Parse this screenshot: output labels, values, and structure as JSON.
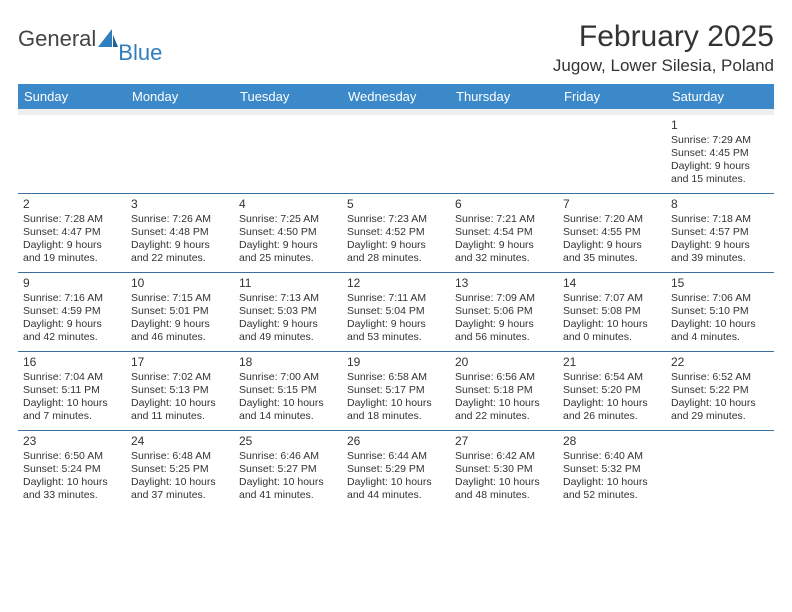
{
  "logo": {
    "word1": "General",
    "word2": "Blue"
  },
  "title": "February 2025",
  "location": "Jugow, Lower Silesia, Poland",
  "colors": {
    "header_bg": "#3b89c9",
    "header_text": "#ffffff",
    "rule": "#3b6fa0",
    "logo_blue": "#2f7fc0",
    "text": "#333333",
    "background": "#ffffff",
    "spacer": "#eeeeee"
  },
  "day_names": [
    "Sunday",
    "Monday",
    "Tuesday",
    "Wednesday",
    "Thursday",
    "Friday",
    "Saturday"
  ],
  "weeks": [
    [
      null,
      null,
      null,
      null,
      null,
      null,
      {
        "n": "1",
        "sr": "7:29 AM",
        "ss": "4:45 PM",
        "dl": "9 hours and 15 minutes."
      }
    ],
    [
      {
        "n": "2",
        "sr": "7:28 AM",
        "ss": "4:47 PM",
        "dl": "9 hours and 19 minutes."
      },
      {
        "n": "3",
        "sr": "7:26 AM",
        "ss": "4:48 PM",
        "dl": "9 hours and 22 minutes."
      },
      {
        "n": "4",
        "sr": "7:25 AM",
        "ss": "4:50 PM",
        "dl": "9 hours and 25 minutes."
      },
      {
        "n": "5",
        "sr": "7:23 AM",
        "ss": "4:52 PM",
        "dl": "9 hours and 28 minutes."
      },
      {
        "n": "6",
        "sr": "7:21 AM",
        "ss": "4:54 PM",
        "dl": "9 hours and 32 minutes."
      },
      {
        "n": "7",
        "sr": "7:20 AM",
        "ss": "4:55 PM",
        "dl": "9 hours and 35 minutes."
      },
      {
        "n": "8",
        "sr": "7:18 AM",
        "ss": "4:57 PM",
        "dl": "9 hours and 39 minutes."
      }
    ],
    [
      {
        "n": "9",
        "sr": "7:16 AM",
        "ss": "4:59 PM",
        "dl": "9 hours and 42 minutes."
      },
      {
        "n": "10",
        "sr": "7:15 AM",
        "ss": "5:01 PM",
        "dl": "9 hours and 46 minutes."
      },
      {
        "n": "11",
        "sr": "7:13 AM",
        "ss": "5:03 PM",
        "dl": "9 hours and 49 minutes."
      },
      {
        "n": "12",
        "sr": "7:11 AM",
        "ss": "5:04 PM",
        "dl": "9 hours and 53 minutes."
      },
      {
        "n": "13",
        "sr": "7:09 AM",
        "ss": "5:06 PM",
        "dl": "9 hours and 56 minutes."
      },
      {
        "n": "14",
        "sr": "7:07 AM",
        "ss": "5:08 PM",
        "dl": "10 hours and 0 minutes."
      },
      {
        "n": "15",
        "sr": "7:06 AM",
        "ss": "5:10 PM",
        "dl": "10 hours and 4 minutes."
      }
    ],
    [
      {
        "n": "16",
        "sr": "7:04 AM",
        "ss": "5:11 PM",
        "dl": "10 hours and 7 minutes."
      },
      {
        "n": "17",
        "sr": "7:02 AM",
        "ss": "5:13 PM",
        "dl": "10 hours and 11 minutes."
      },
      {
        "n": "18",
        "sr": "7:00 AM",
        "ss": "5:15 PM",
        "dl": "10 hours and 14 minutes."
      },
      {
        "n": "19",
        "sr": "6:58 AM",
        "ss": "5:17 PM",
        "dl": "10 hours and 18 minutes."
      },
      {
        "n": "20",
        "sr": "6:56 AM",
        "ss": "5:18 PM",
        "dl": "10 hours and 22 minutes."
      },
      {
        "n": "21",
        "sr": "6:54 AM",
        "ss": "5:20 PM",
        "dl": "10 hours and 26 minutes."
      },
      {
        "n": "22",
        "sr": "6:52 AM",
        "ss": "5:22 PM",
        "dl": "10 hours and 29 minutes."
      }
    ],
    [
      {
        "n": "23",
        "sr": "6:50 AM",
        "ss": "5:24 PM",
        "dl": "10 hours and 33 minutes."
      },
      {
        "n": "24",
        "sr": "6:48 AM",
        "ss": "5:25 PM",
        "dl": "10 hours and 37 minutes."
      },
      {
        "n": "25",
        "sr": "6:46 AM",
        "ss": "5:27 PM",
        "dl": "10 hours and 41 minutes."
      },
      {
        "n": "26",
        "sr": "6:44 AM",
        "ss": "5:29 PM",
        "dl": "10 hours and 44 minutes."
      },
      {
        "n": "27",
        "sr": "6:42 AM",
        "ss": "5:30 PM",
        "dl": "10 hours and 48 minutes."
      },
      {
        "n": "28",
        "sr": "6:40 AM",
        "ss": "5:32 PM",
        "dl": "10 hours and 52 minutes."
      },
      null
    ]
  ],
  "labels": {
    "sunrise": "Sunrise:",
    "sunset": "Sunset:",
    "daylight": "Daylight:"
  }
}
